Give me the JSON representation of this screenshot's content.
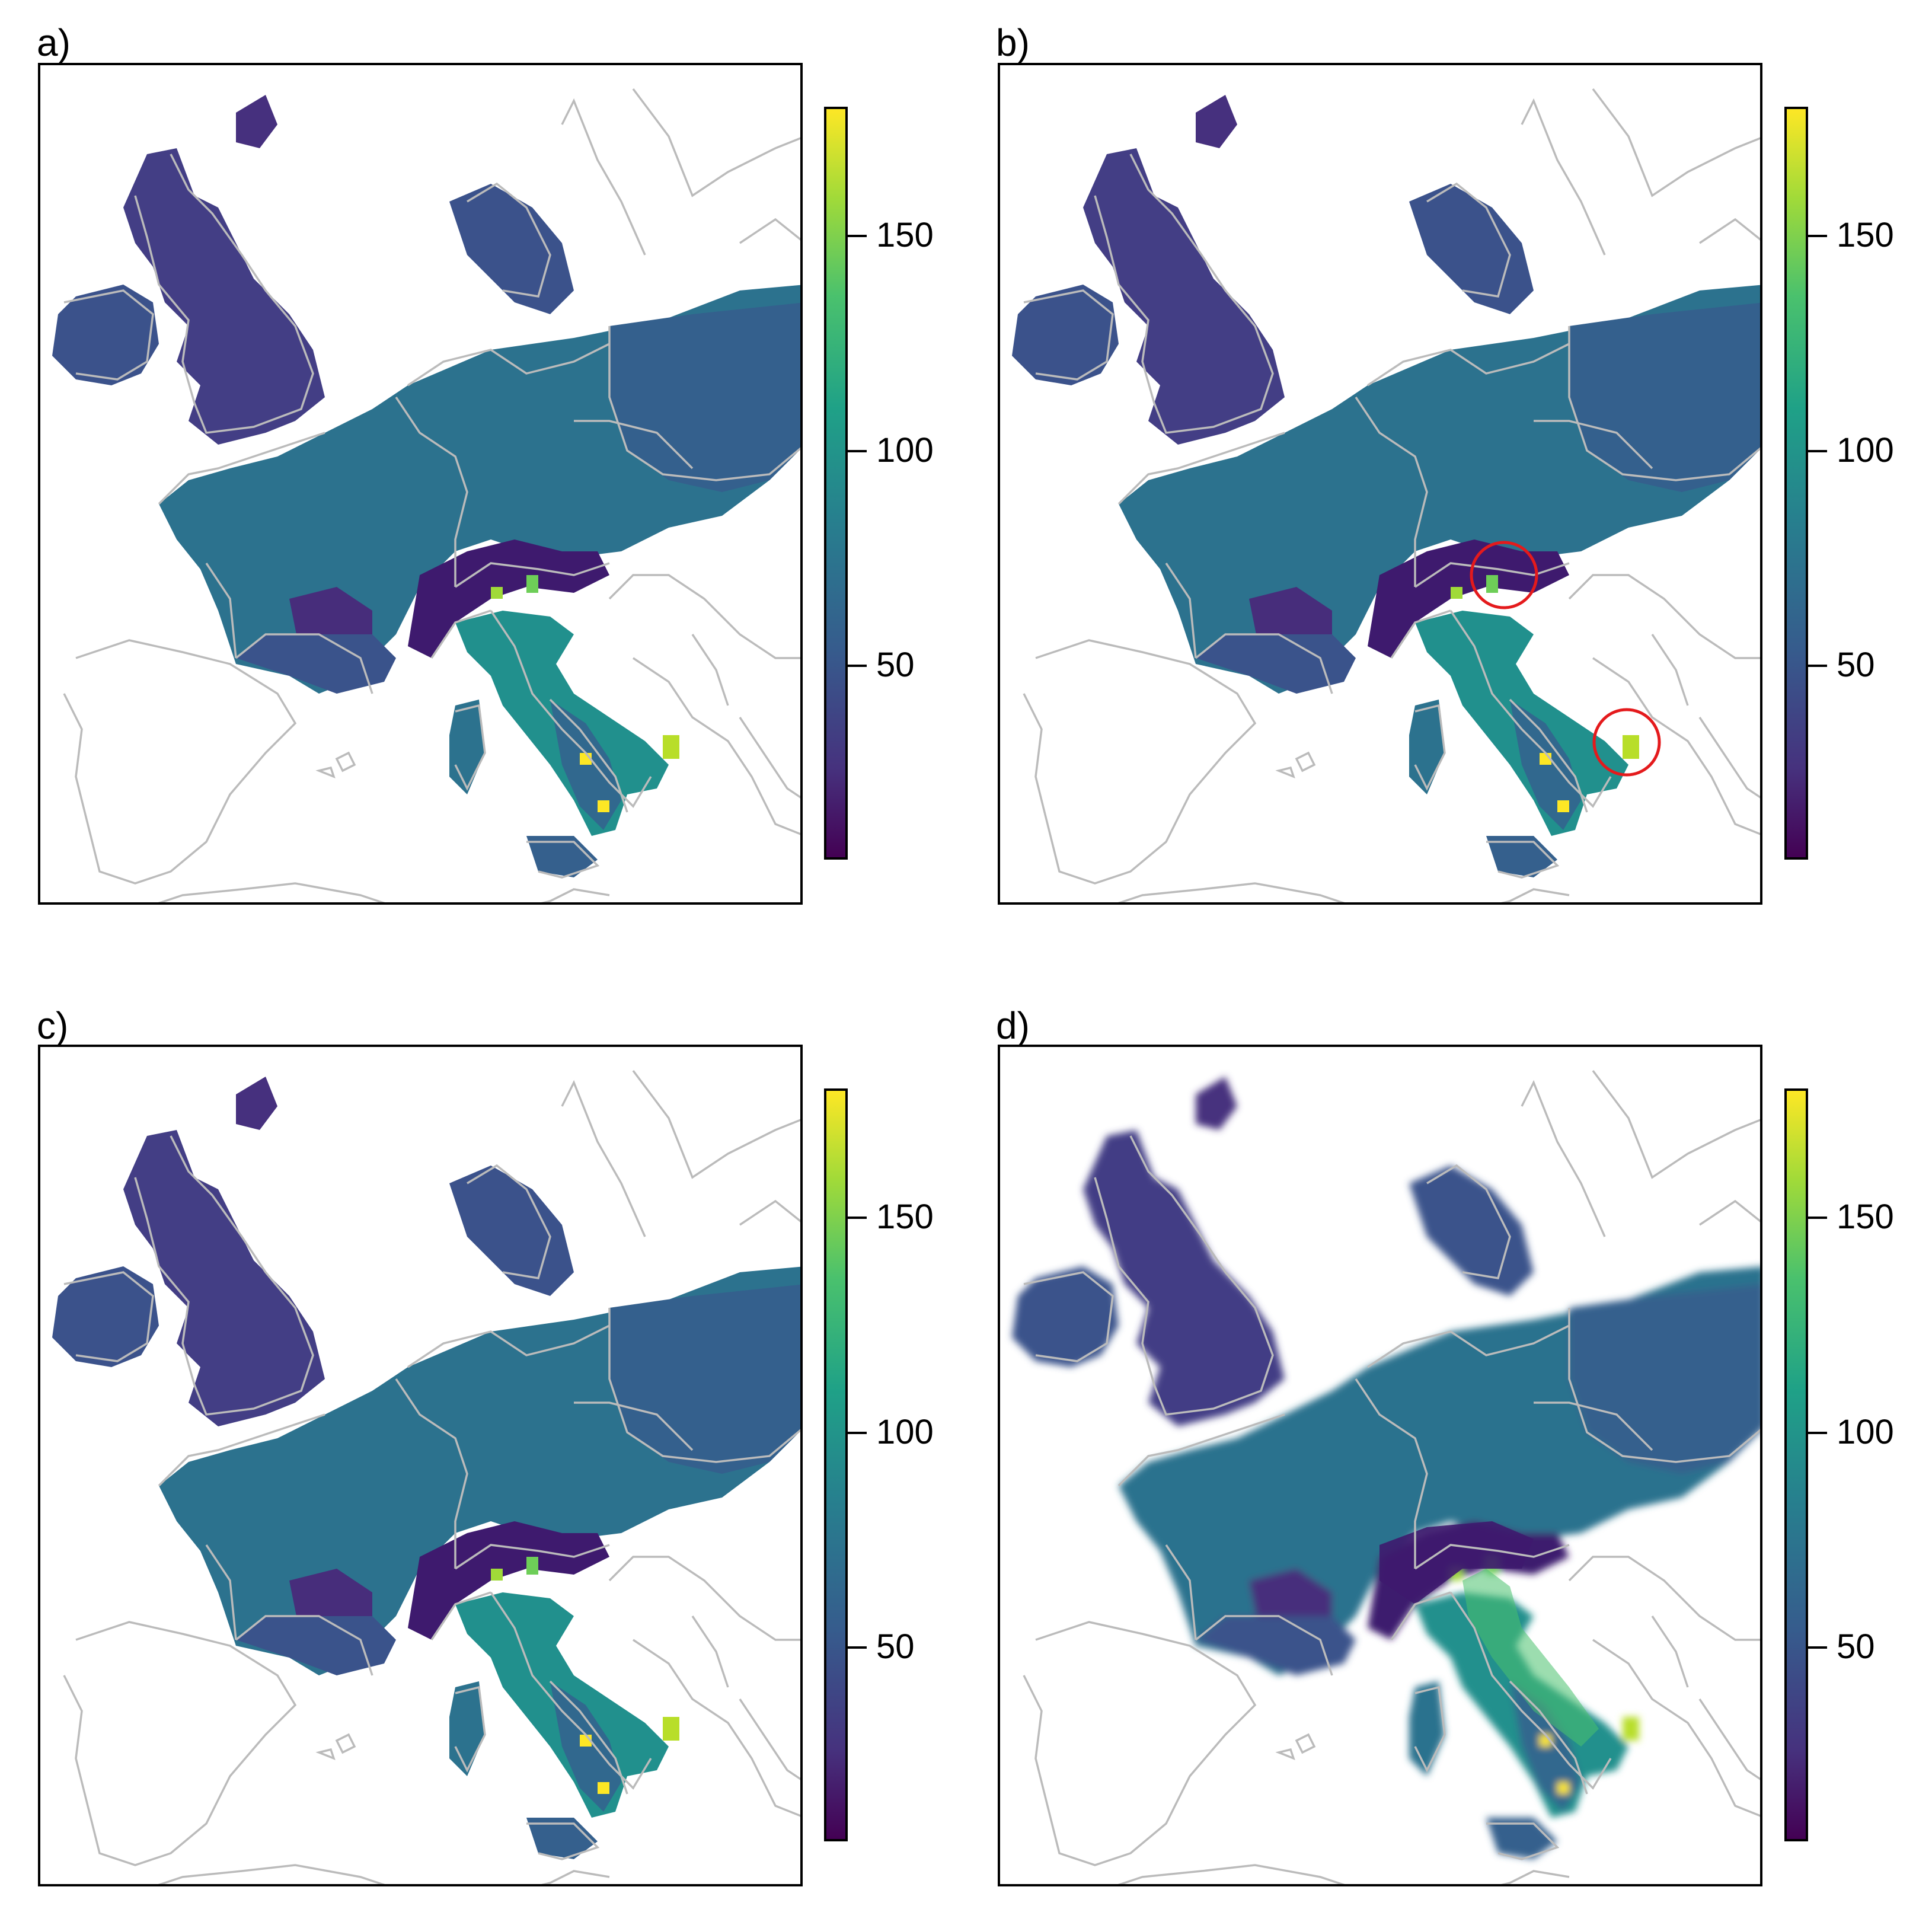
{
  "panels": [
    {
      "id": "a",
      "label": "a)"
    },
    {
      "id": "b",
      "label": "b)"
    },
    {
      "id": "c",
      "label": "c)"
    },
    {
      "id": "d",
      "label": "d)"
    }
  ],
  "colorbar": {
    "range": [
      5,
      180
    ],
    "ticks": [
      "50",
      "100",
      "150"
    ],
    "tick_values": [
      50,
      100,
      150
    ],
    "palette": [
      "#440154",
      "#46327e",
      "#365c8d",
      "#277f8e",
      "#1fa187",
      "#4ac16d",
      "#a0da39",
      "#fde725"
    ]
  },
  "colors": {
    "borders": "#bbbbbb",
    "highlight_circle": "#e41a1c",
    "frame": "#000000"
  }
}
